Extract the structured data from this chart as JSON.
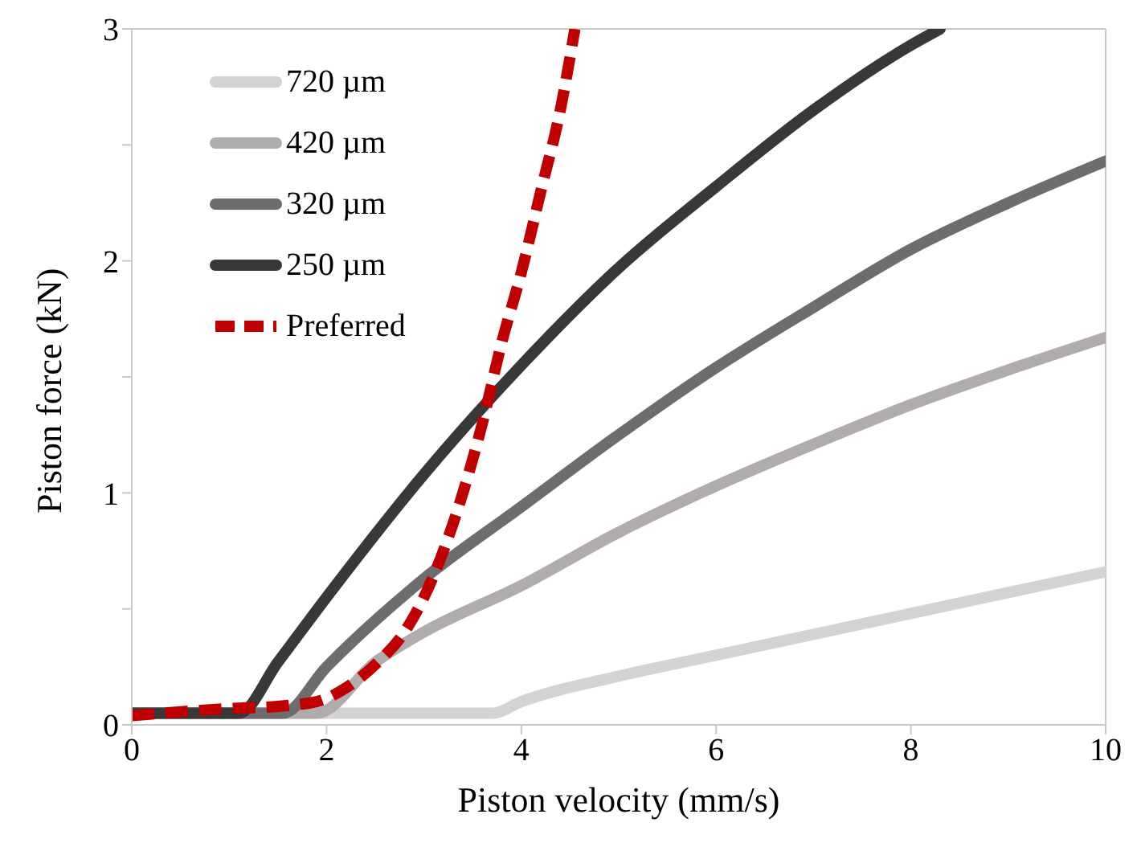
{
  "chart_data": {
    "type": "line",
    "xlabel": "Piston velocity (mm/s)",
    "ylabel": "Piston force (kN)",
    "xlim": [
      0,
      10
    ],
    "xticks": [
      0,
      2,
      4,
      6,
      8,
      10
    ],
    "ylim": [
      0,
      3
    ],
    "yticks": [
      0,
      {
        "value": 0.5,
        "label": null
      },
      1,
      {
        "value": 1.5,
        "label": null
      },
      2,
      {
        "value": 2.5,
        "label": null
      },
      3
    ],
    "grid": false,
    "legend": "top left",
    "marker": "none",
    "series": [
      {
        "name": "720 µm",
        "color": "#d4d2d2",
        "line_style": "solid",
        "x": [
          0,
          3.7,
          4,
          5,
          6,
          7,
          8,
          9,
          10
        ],
        "values": [
          0.05,
          0.05,
          0.1,
          0.21,
          0.3,
          0.39,
          0.48,
          0.57,
          0.66
        ]
      },
      {
        "name": "420 µm",
        "color": "#b0acac",
        "line_style": "solid",
        "x": [
          0,
          1.9,
          2.5,
          3,
          4,
          5,
          6,
          7,
          8,
          9,
          10
        ],
        "values": [
          0.05,
          0.05,
          0.27,
          0.4,
          0.6,
          0.83,
          1.03,
          1.21,
          1.38,
          1.53,
          1.67
        ]
      },
      {
        "name": "320 µm",
        "color": "#6e6c6c",
        "line_style": "solid",
        "x": [
          0,
          1.55,
          2,
          3,
          4,
          5,
          6,
          7,
          8,
          9,
          10
        ],
        "values": [
          0.05,
          0.05,
          0.25,
          0.63,
          0.94,
          1.25,
          1.54,
          1.8,
          2.05,
          2.25,
          2.43
        ]
      },
      {
        "name": "250 µm",
        "color": "#383838",
        "line_style": "solid",
        "x": [
          0,
          1.1,
          1.5,
          2,
          3,
          4,
          5,
          6,
          7,
          8,
          8.3
        ],
        "values": [
          0.05,
          0.05,
          0.27,
          0.55,
          1.08,
          1.55,
          1.97,
          2.32,
          2.65,
          2.93,
          3
        ]
      },
      {
        "name": "Preferred",
        "color": "#c00000",
        "line_style": "dashed",
        "x": [
          0,
          1,
          1.5,
          1.9,
          2.2,
          2.5,
          2.8,
          3,
          3.2,
          3.4,
          3.6,
          3.8,
          4,
          4.2,
          4.4,
          4.55
        ],
        "values": [
          0.04,
          0.07,
          0.08,
          0.1,
          0.16,
          0.26,
          0.4,
          0.55,
          0.75,
          1.0,
          1.3,
          1.65,
          1.95,
          2.3,
          2.65,
          3
        ]
      }
    ]
  }
}
